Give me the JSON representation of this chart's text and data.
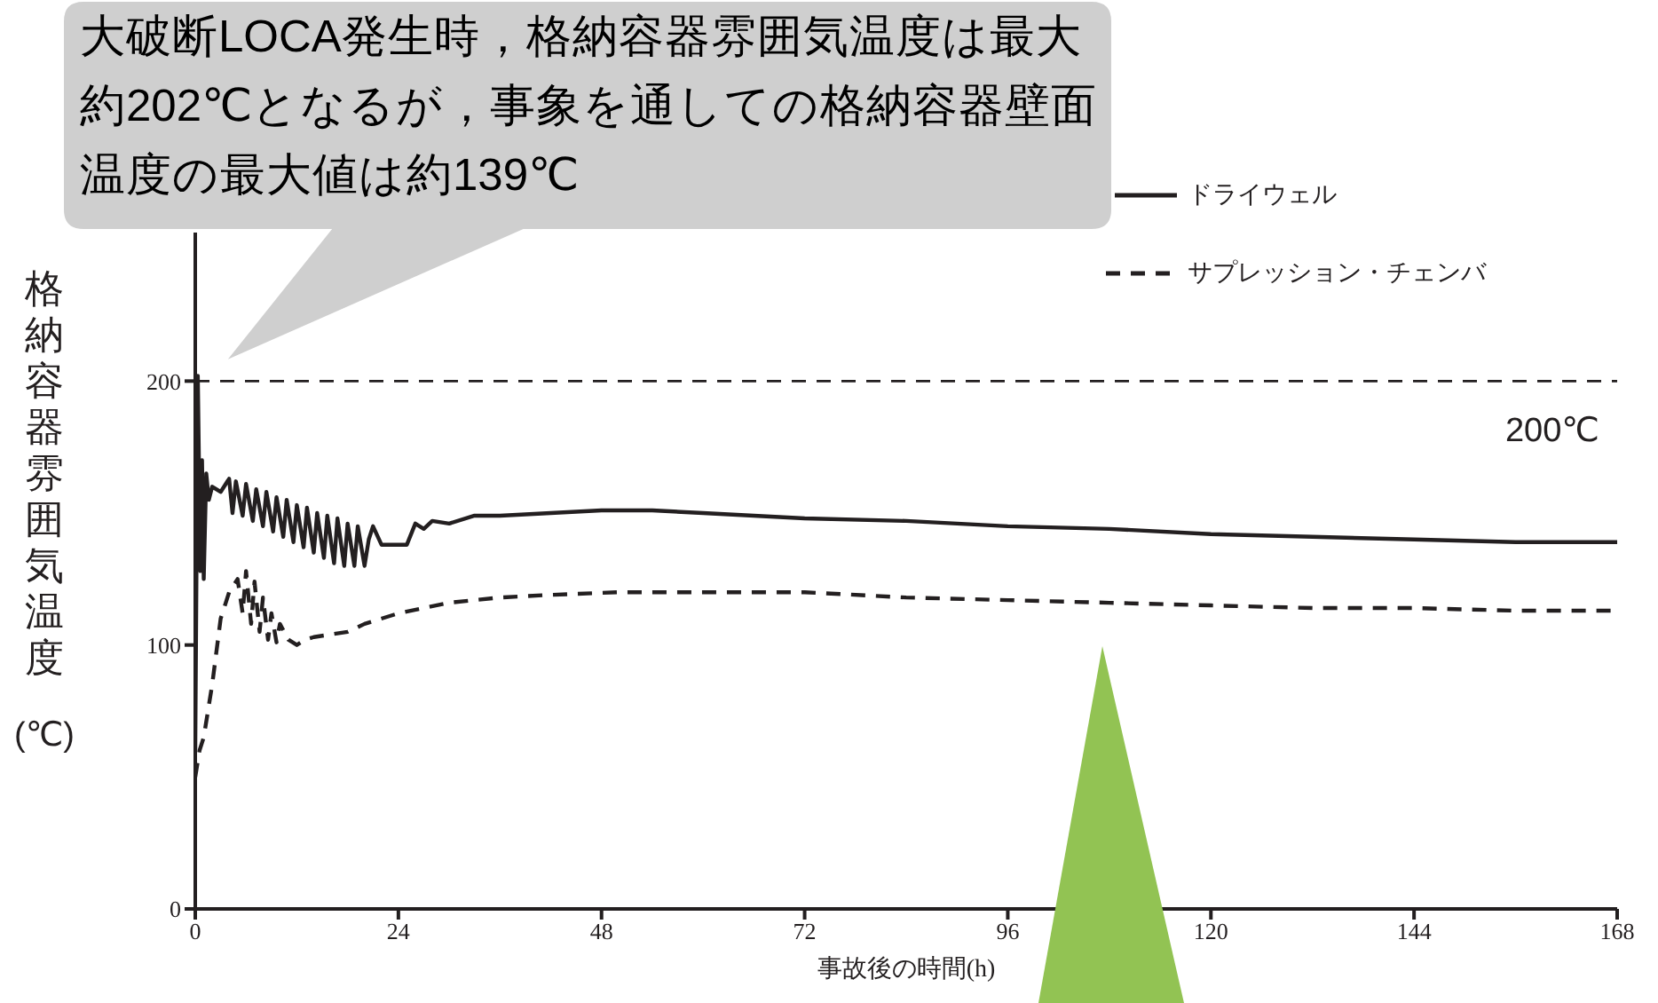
{
  "chart_data": {
    "type": "line",
    "xlabel": "事故後の時間(h)",
    "ylabel": "格納容器雰囲気温度(℃)",
    "annotations": [
      "大破断LOCA発生時，格納容器雰囲気温度は最大約202℃となるが，事象を通しての格納容器壁面温度の最大値は約139℃"
    ],
    "xlim": [
      0,
      168
    ],
    "xticks": [
      0,
      24,
      48,
      72,
      96,
      120,
      144,
      168
    ],
    "ylim": [
      0,
      300
    ],
    "yticks": [
      0,
      100,
      200
    ],
    "legend": "top right",
    "marker": "none",
    "ref_lines": [
      {
        "axis": "y",
        "value": 200,
        "label": "200℃",
        "color": "#231f20",
        "line_style": "dashed"
      }
    ],
    "series": [
      {
        "name": "ドライウェル",
        "color": "#231f20",
        "line_style": "solid",
        "x": [
          0,
          0.3,
          0.6,
          0.8,
          1,
          1.3,
          1.6,
          2,
          3,
          4,
          4.4,
          4.8,
          5.6,
          6,
          6.8,
          7.2,
          8,
          8.4,
          9.2,
          9.6,
          10.4,
          10.8,
          11.6,
          12,
          12.8,
          13.2,
          14,
          14.4,
          15.2,
          15.6,
          16.4,
          16.8,
          17.6,
          18,
          18.8,
          19.2,
          20,
          20.5,
          21,
          22,
          24,
          25,
          26,
          27,
          28,
          30,
          33,
          36,
          42,
          48,
          54,
          60,
          72,
          84,
          96,
          108,
          120,
          132,
          144,
          156,
          168
        ],
        "values": [
          60,
          202,
          128,
          170,
          125,
          165,
          155,
          160,
          158,
          163,
          150,
          162,
          149,
          161,
          147,
          159,
          145,
          158,
          143,
          156,
          141,
          155,
          139,
          153,
          137,
          152,
          135,
          150,
          133,
          149,
          131,
          148,
          130,
          146,
          130,
          145,
          130,
          140,
          145,
          138,
          138,
          138,
          146,
          144,
          147,
          146,
          149,
          149,
          150,
          151,
          151,
          150,
          148,
          147,
          145,
          144,
          142,
          141,
          140,
          139,
          139
        ]
      },
      {
        "name": "サプレッション・チェンバ",
        "color": "#231f20",
        "line_style": "dashed",
        "x": [
          0,
          0.5,
          1,
          2,
          3,
          4,
          5,
          5.6,
          6,
          6.6,
          7,
          7.6,
          8,
          8.6,
          9,
          9.6,
          10,
          11,
          12,
          13,
          14,
          16,
          18,
          20,
          24,
          30,
          36,
          42,
          50,
          60,
          72,
          84,
          96,
          108,
          120,
          132,
          144,
          156,
          168
        ],
        "values": [
          50,
          60,
          65,
          85,
          110,
          120,
          125,
          112,
          128,
          108,
          124,
          105,
          118,
          102,
          112,
          101,
          108,
          102,
          100,
          102,
          103,
          104,
          105,
          108,
          112,
          116,
          118,
          119,
          120,
          120,
          120,
          118,
          117,
          116,
          115,
          114,
          114,
          113,
          113
        ]
      }
    ]
  }
}
